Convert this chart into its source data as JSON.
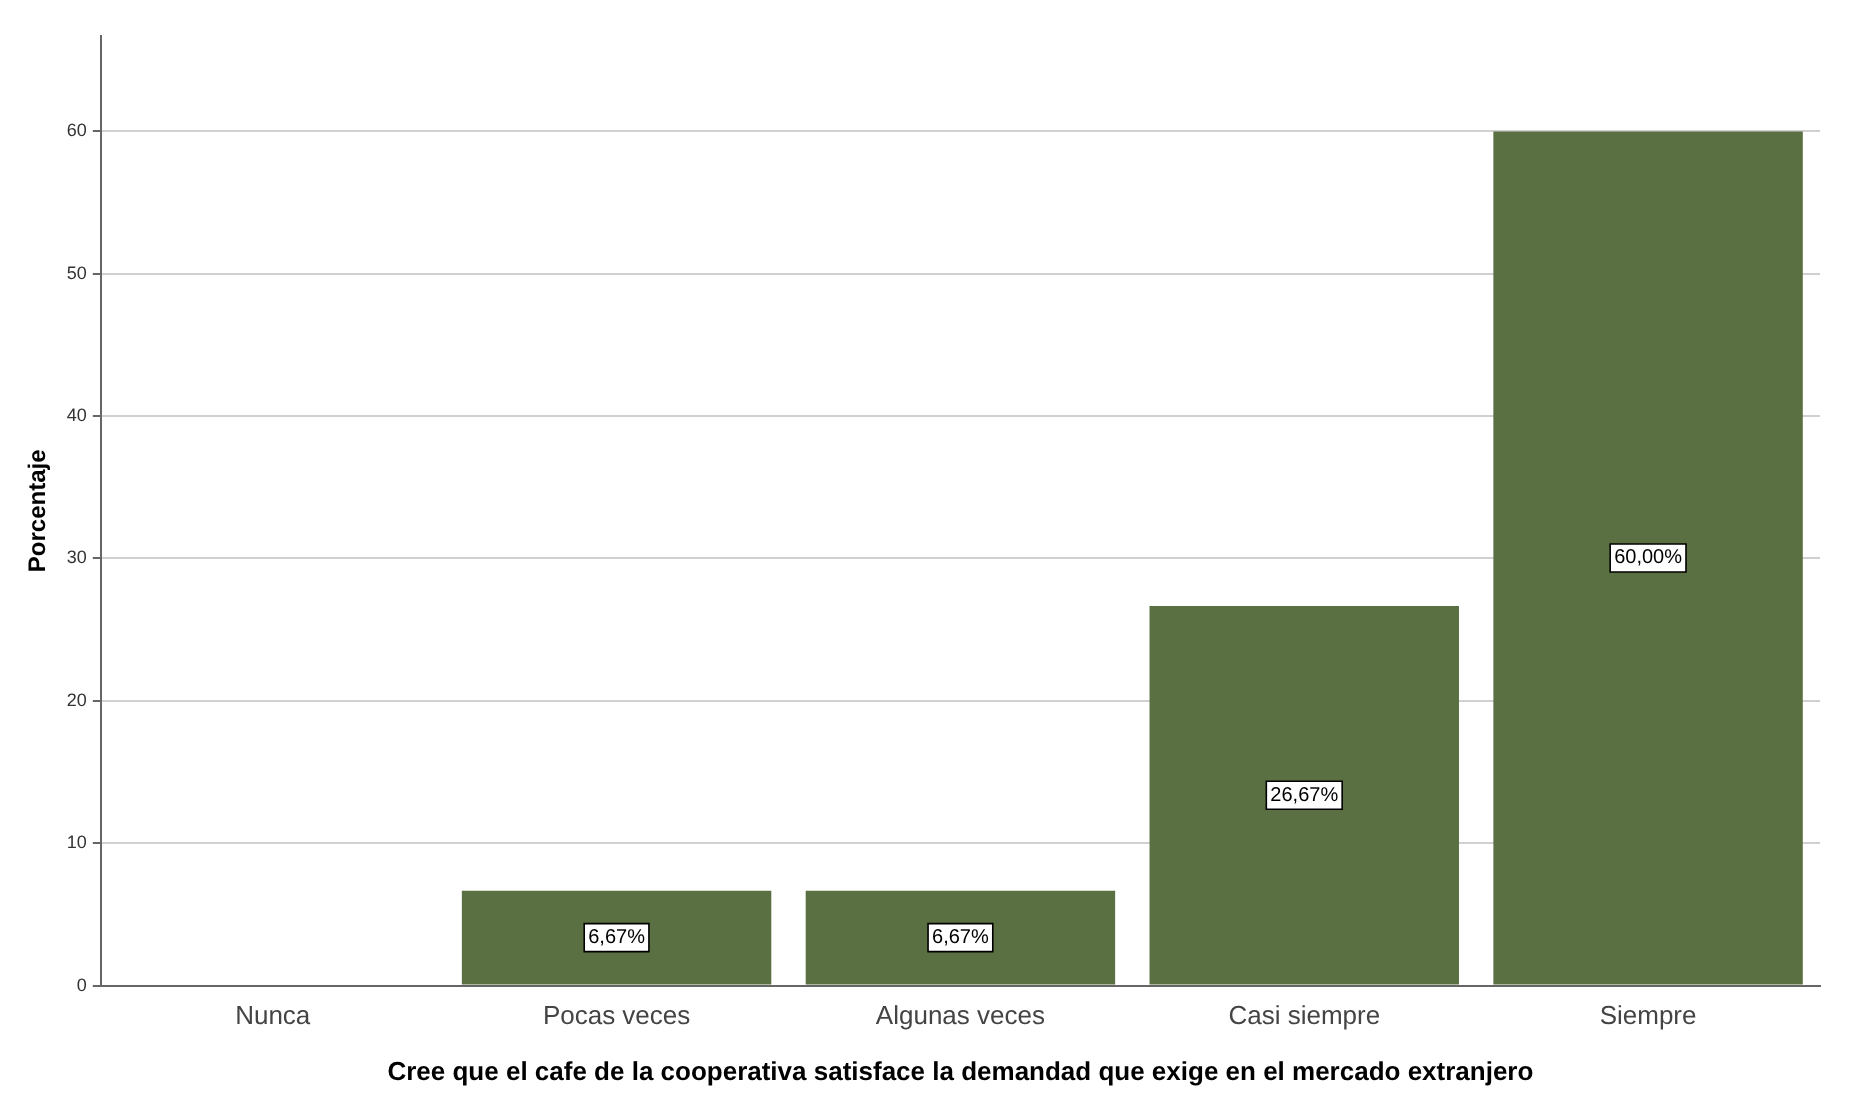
{
  "chart_data": {
    "type": "bar",
    "categories": [
      "Nunca",
      "Pocas veces",
      "Algunas veces",
      "Casi siempre",
      "Siempre"
    ],
    "values": [
      0,
      6.67,
      6.67,
      26.67,
      60.0
    ],
    "value_labels": [
      null,
      "6,67%",
      "6,67%",
      "26,67%",
      "60,00%"
    ],
    "color": "#5b7042",
    "xlabel": "Cree que el cafe de la cooperativa satisface la demandad que exige en el mercado extranjero",
    "ylabel": "Porcentaje",
    "ylim": [
      0,
      66.7
    ],
    "yticks": [
      0,
      10,
      20,
      30,
      40,
      50,
      60
    ],
    "grid": "y"
  }
}
